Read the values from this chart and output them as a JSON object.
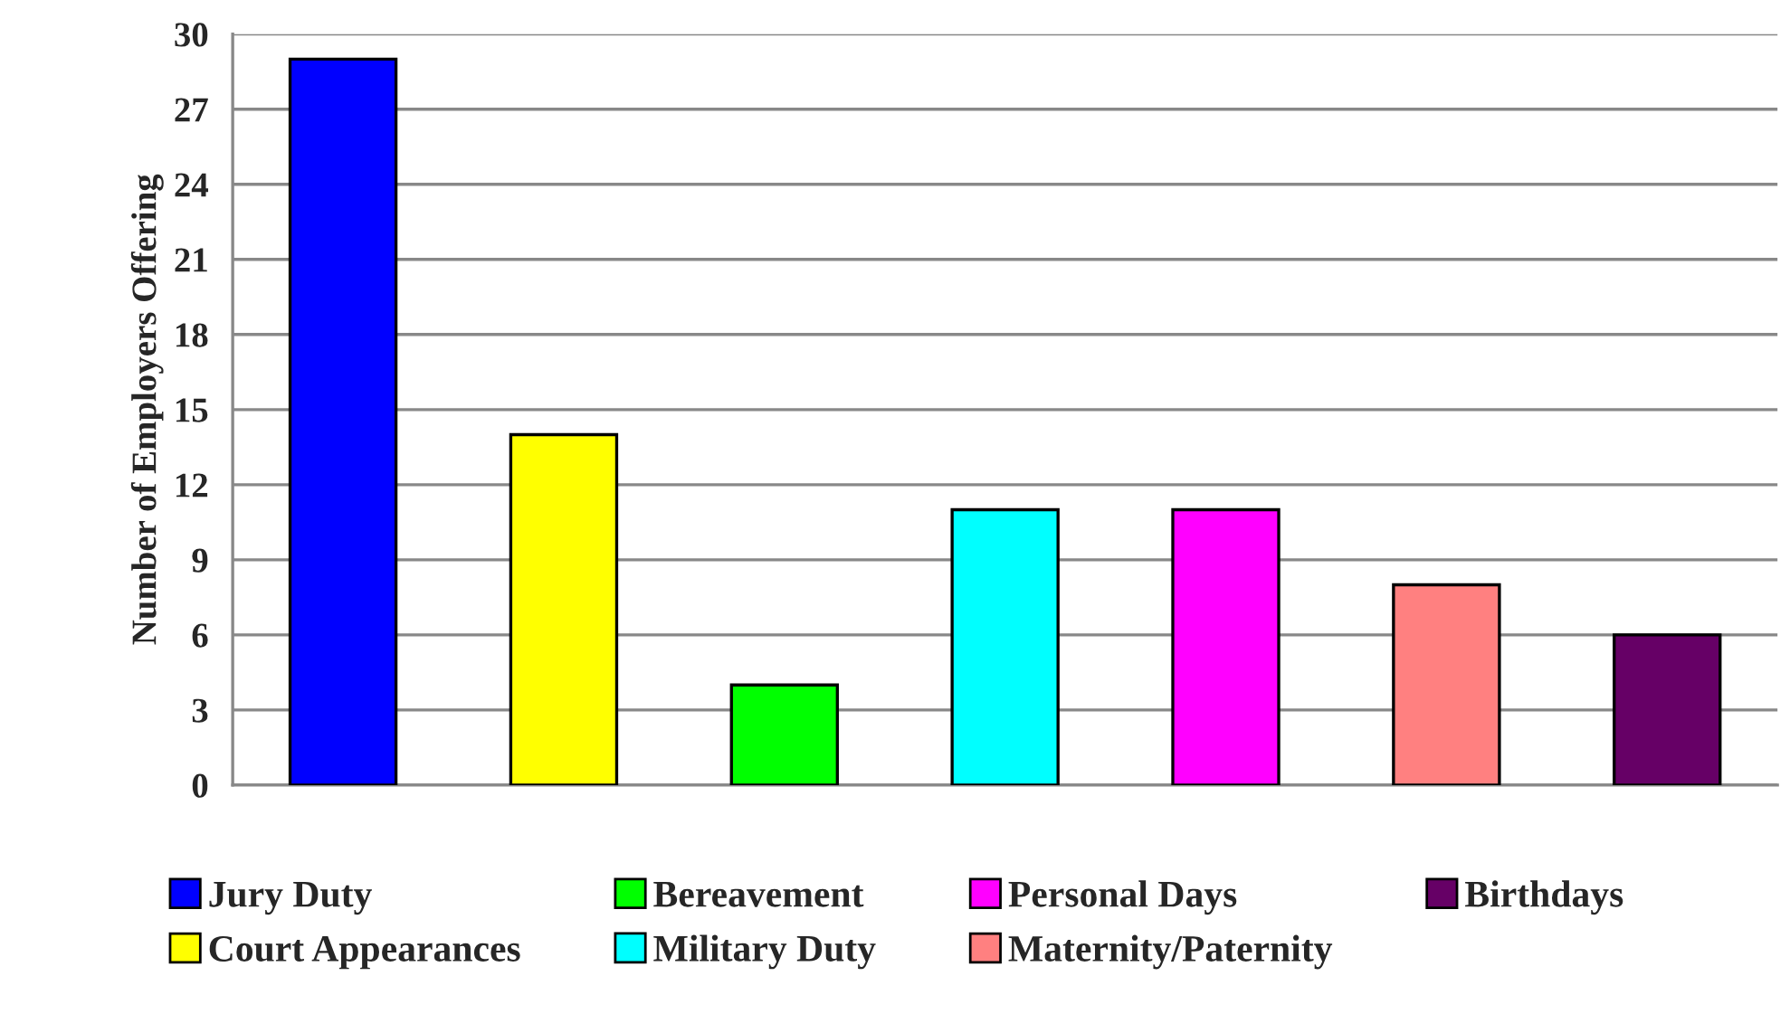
{
  "chart_data": {
    "type": "bar",
    "ylabel": "Number of Employers Offering",
    "categories": [
      null,
      null,
      null,
      null,
      null,
      null,
      null
    ],
    "series": [
      {
        "name": "Jury Duty",
        "color": "#0000ff",
        "values": [
          29,
          null,
          null,
          null,
          null,
          null,
          null
        ]
      },
      {
        "name": "Court Appearances",
        "color": "#ffff00",
        "values": [
          null,
          14,
          null,
          null,
          null,
          null,
          null
        ]
      },
      {
        "name": "Bereavement",
        "color": "#00ff00",
        "values": [
          null,
          null,
          4,
          null,
          null,
          null,
          null
        ]
      },
      {
        "name": "Military Duty",
        "color": "#00ffff",
        "values": [
          null,
          null,
          null,
          11,
          null,
          null,
          null
        ]
      },
      {
        "name": "Personal Days",
        "color": "#ff00ff",
        "values": [
          null,
          null,
          null,
          null,
          11,
          null,
          null
        ]
      },
      {
        "name": "Maternity/Paternity",
        "color": "#ff8080",
        "values": [
          null,
          null,
          null,
          null,
          null,
          8,
          null
        ]
      },
      {
        "name": "Birthdays",
        "color": "#660066",
        "values": [
          null,
          null,
          null,
          null,
          null,
          null,
          6
        ]
      }
    ],
    "ylim": [
      0,
      30
    ],
    "yticks": [
      0,
      3,
      6,
      9,
      12,
      15,
      18,
      21,
      24,
      27,
      30
    ],
    "grid": "y",
    "legend": "bottom"
  }
}
